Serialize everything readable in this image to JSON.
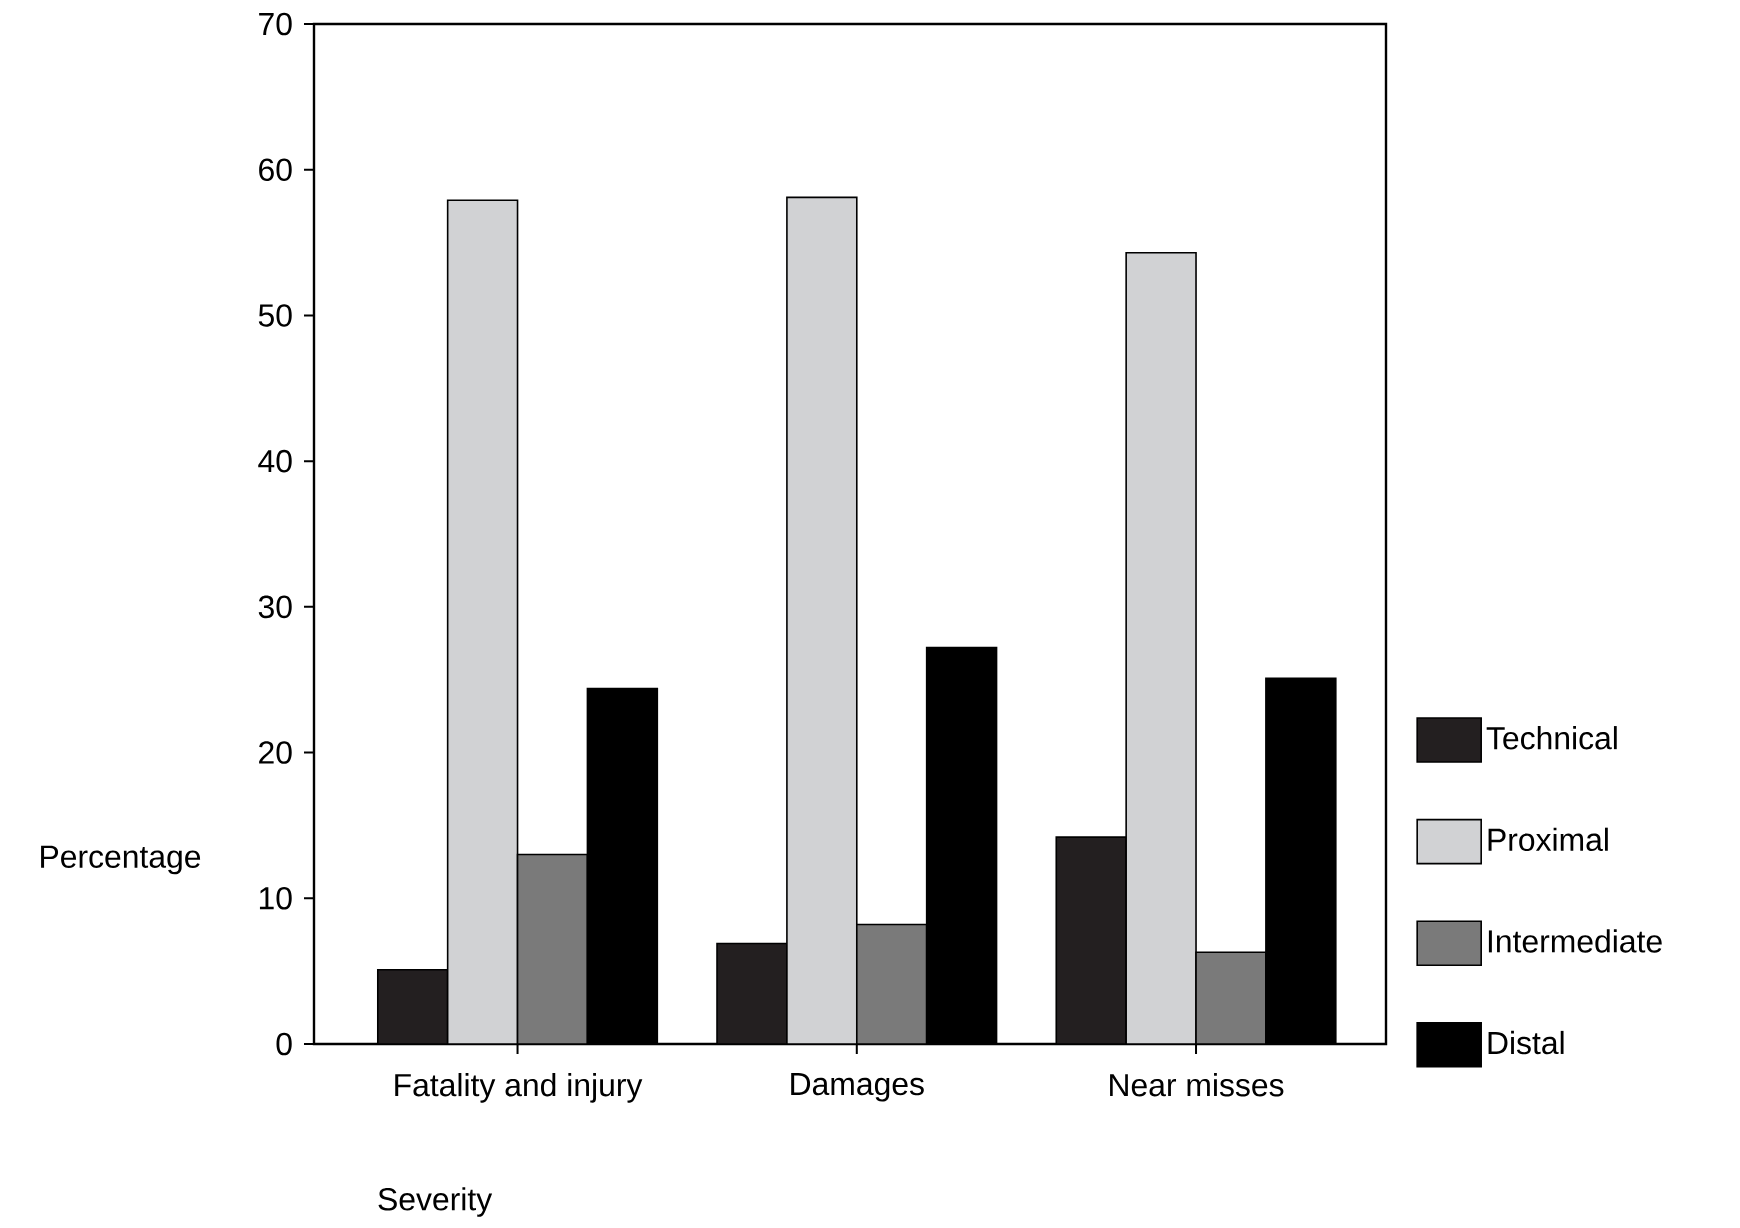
{
  "chart_data": {
    "type": "bar",
    "xlabel": "Severity",
    "ylabel": "Percentage",
    "categories": [
      "Fatality and injury",
      "Damages",
      "Near misses"
    ],
    "series": [
      {
        "name": "Technical",
        "color": "#231f20",
        "values": [
          5.1,
          6.9,
          14.2
        ]
      },
      {
        "name": "Proximal",
        "color": "#d1d2d4",
        "values": [
          57.9,
          58.1,
          54.3
        ]
      },
      {
        "name": "Intermediate",
        "color": "#7a7a7a",
        "values": [
          13.0,
          8.2,
          6.3
        ]
      },
      {
        "name": "Distal",
        "color": "#000000",
        "values": [
          24.4,
          27.2,
          25.1
        ]
      }
    ],
    "ylim": [
      0,
      70
    ],
    "yticks": [
      0,
      10,
      20,
      30,
      40,
      50,
      60,
      70
    ],
    "grid": false,
    "legend": "right"
  }
}
